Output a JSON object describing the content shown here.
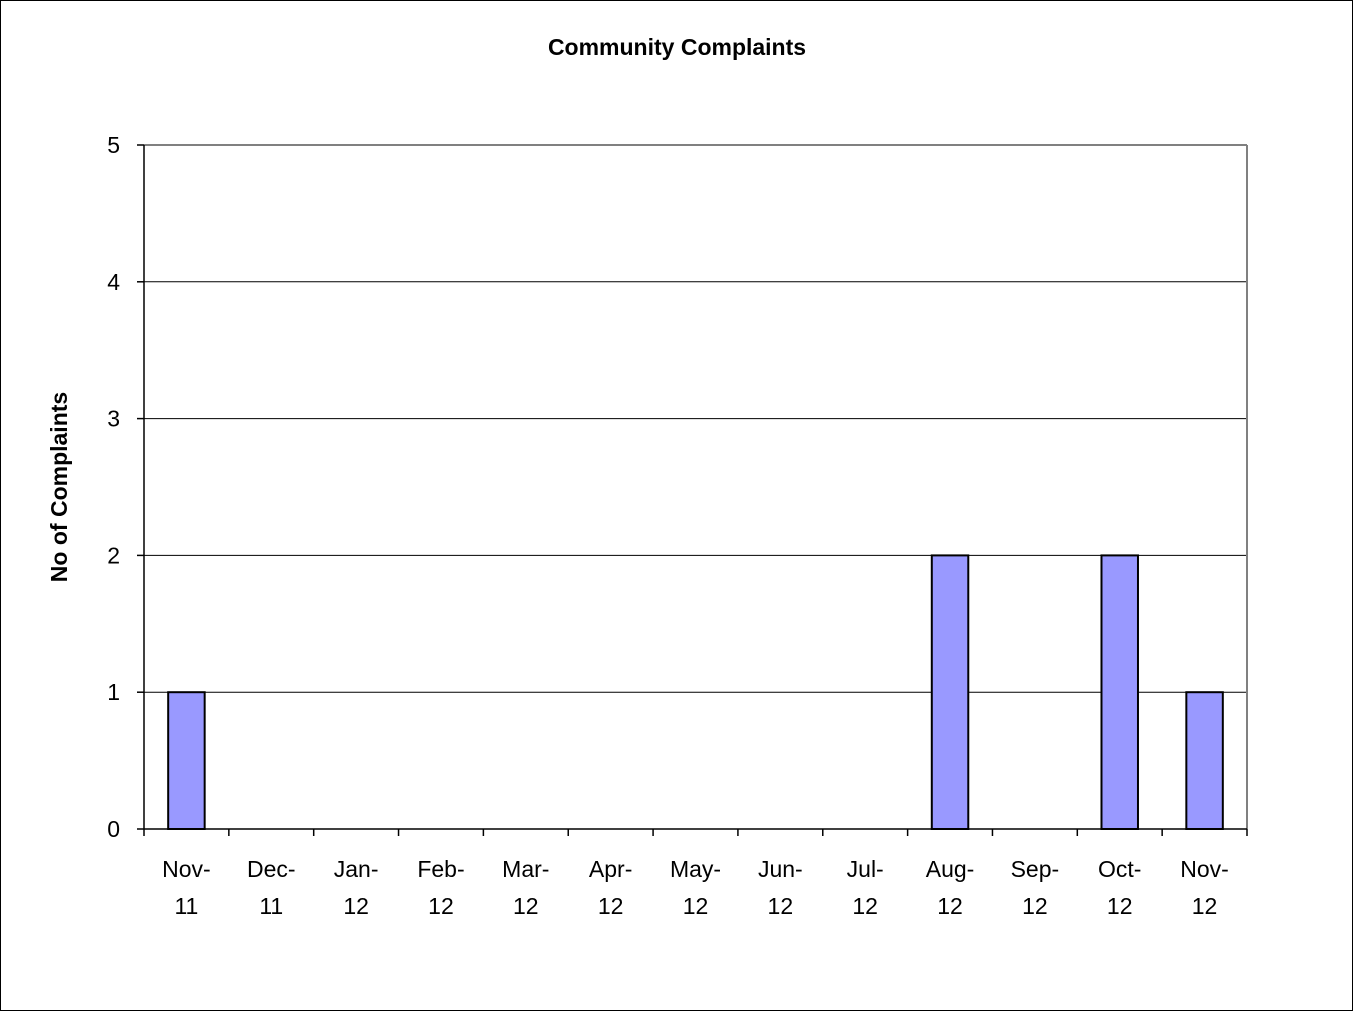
{
  "chart_data": {
    "type": "bar",
    "title": "Community Complaints",
    "xlabel": "",
    "ylabel": "No of Complaints",
    "categories": [
      [
        "Nov-",
        "11"
      ],
      [
        "Dec-",
        "11"
      ],
      [
        "Jan-",
        "12"
      ],
      [
        "Feb-",
        "12"
      ],
      [
        "Mar-",
        "12"
      ],
      [
        "Apr-",
        "12"
      ],
      [
        "May-",
        "12"
      ],
      [
        "Jun-",
        "12"
      ],
      [
        "Jul-",
        "12"
      ],
      [
        "Aug-",
        "12"
      ],
      [
        "Sep-",
        "12"
      ],
      [
        "Oct-",
        "12"
      ],
      [
        "Nov-",
        "12"
      ]
    ],
    "values": [
      1,
      0,
      0,
      0,
      0,
      0,
      0,
      0,
      0,
      2,
      0,
      2,
      1
    ],
    "ylim": [
      0,
      5
    ],
    "yticks": [
      0,
      1,
      2,
      3,
      4,
      5
    ],
    "grid": true,
    "legend": "none",
    "colors": {
      "bar_fill": "#9999ff",
      "bar_stroke": "#000000",
      "grid": "#000000",
      "plot_border": "#808080"
    }
  }
}
